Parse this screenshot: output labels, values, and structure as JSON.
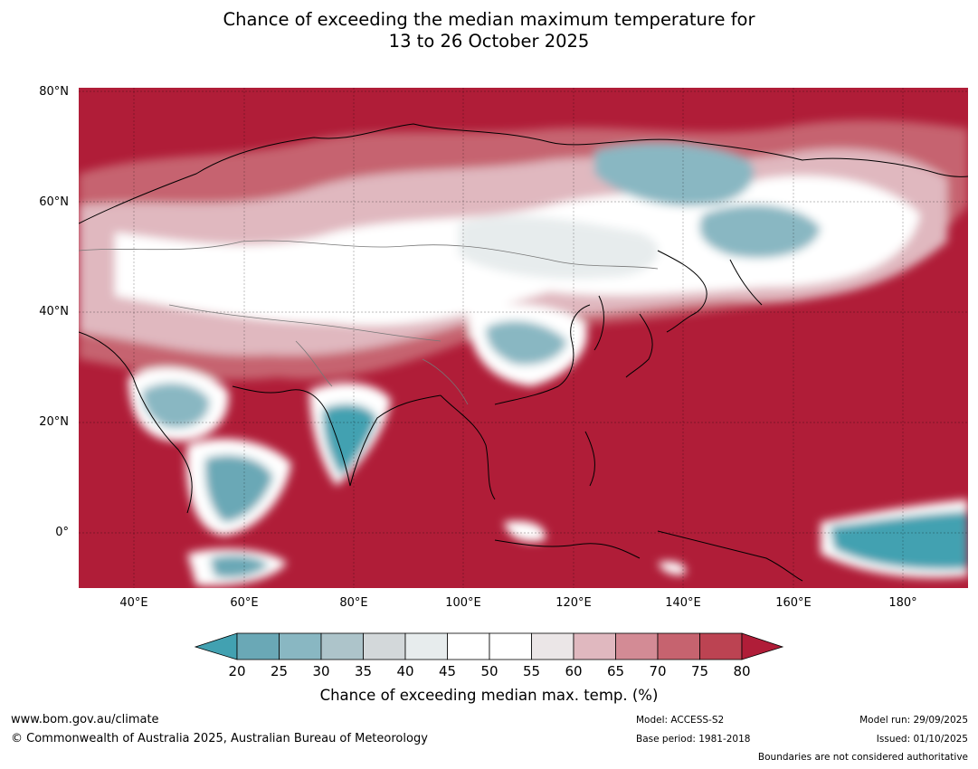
{
  "title": {
    "line1": "Chance of exceeding the median maximum temperature for",
    "line2": "13 to 26 October 2025"
  },
  "map": {
    "lat_labels": [
      "80°N",
      "60°N",
      "40°N",
      "20°N",
      "0°"
    ],
    "lon_labels": [
      "40°E",
      "60°E",
      "80°E",
      "100°E",
      "120°E",
      "140°E",
      "160°E",
      "180°"
    ]
  },
  "colorbar": {
    "ticks": [
      "20",
      "25",
      "30",
      "35",
      "40",
      "45",
      "50",
      "55",
      "60",
      "65",
      "70",
      "75",
      "80"
    ],
    "colors": [
      "#42a1b1",
      "#6aa8b6",
      "#89b7c2",
      "#adc4ca",
      "#d3d8da",
      "#e7eced",
      "#ffffff",
      "#ffffff",
      "#ebe6e7",
      "#e0b8bf",
      "#d38b95",
      "#c6636f",
      "#bc4352",
      "#b01d38"
    ],
    "title": "Chance of exceeding median max. temp. (%)"
  },
  "footer": {
    "website": "www.bom.gov.au/climate",
    "copyright": "© Commonwealth of Australia 2025, Australian Bureau of Meteorology",
    "model": "Model: ACCESS-S2",
    "base_period": "Base period: 1981-2018",
    "model_run": "Model run: 29/09/2025",
    "issued": "Issued: 01/10/2025",
    "disclaimer": "Boundaries are not considered authoritative"
  }
}
